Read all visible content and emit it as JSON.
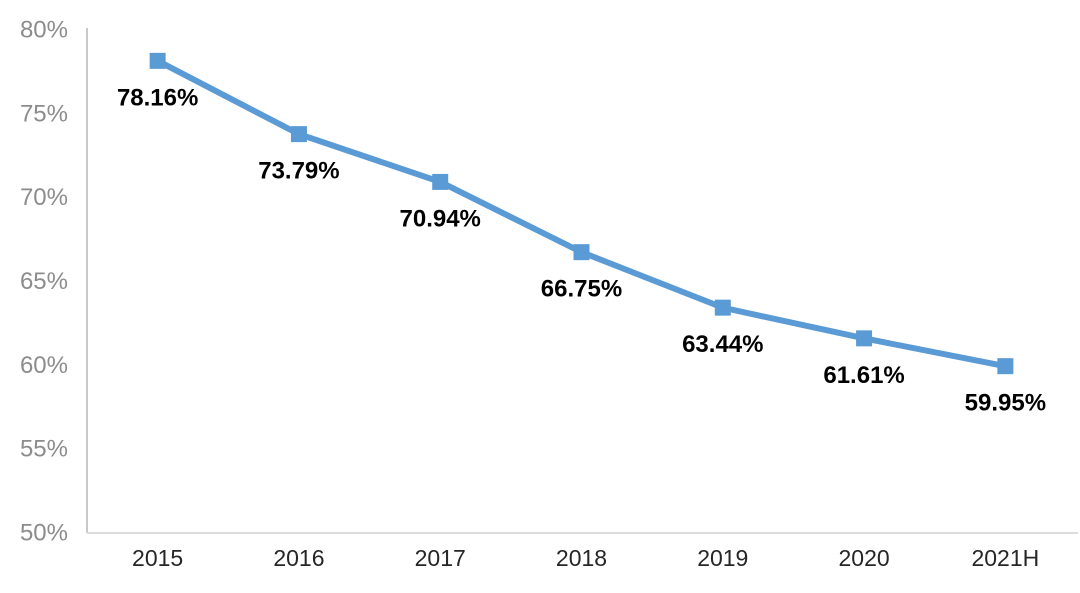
{
  "chart_data": {
    "type": "line",
    "title": "",
    "xlabel": "",
    "ylabel": "",
    "categories": [
      "2015",
      "2016",
      "2017",
      "2018",
      "2019",
      "2020",
      "2021H"
    ],
    "series": [
      {
        "name": "share-percentage",
        "values": [
          78.16,
          73.79,
          70.94,
          66.75,
          63.44,
          61.61,
          59.95
        ],
        "labels": [
          "78.16%",
          "73.79%",
          "70.94%",
          "66.75%",
          "63.44%",
          "61.61%",
          "59.95%"
        ]
      }
    ],
    "ylim": [
      50,
      80
    ],
    "ytick_step": 5,
    "ytick_labels": [
      "50%",
      "55%",
      "60%",
      "65%",
      "70%",
      "75%",
      "80%"
    ],
    "grid": false,
    "legend": "none",
    "marker": "square",
    "colors": {
      "line": "#5B9BD5",
      "marker": "#5B9BD5",
      "data_label": "#000000",
      "ytick_label": "#8C8C8C",
      "xtick_label": "#262626",
      "axis_line_y": "#C9C9C9",
      "axis_line_x": "#DCDCDC",
      "background": "#FFFFFF"
    }
  }
}
